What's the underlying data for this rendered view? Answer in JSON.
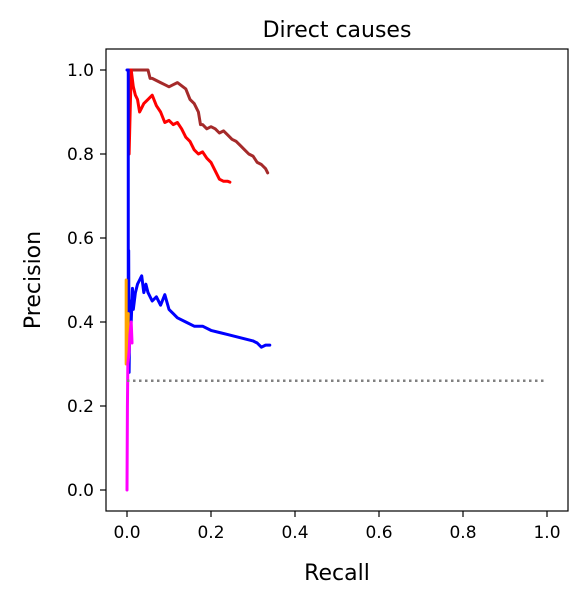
{
  "chart_data": {
    "type": "line",
    "title": "Direct causes",
    "xlabel": "Recall",
    "ylabel": "Precision",
    "xlim": [
      -0.05,
      1.05
    ],
    "ylim": [
      -0.05,
      1.05
    ],
    "xticks": [
      0.0,
      0.2,
      0.4,
      0.6,
      0.8,
      1.0
    ],
    "xtick_labels": [
      "0.0",
      "0.2",
      "0.4",
      "0.6",
      "0.8",
      "1.0"
    ],
    "yticks": [
      0.0,
      0.2,
      0.4,
      0.6,
      0.8,
      1.0
    ],
    "ytick_labels": [
      "0.0",
      "0.2",
      "0.4",
      "0.6",
      "0.8",
      "1.0"
    ],
    "grid": false,
    "legend": "none",
    "series": [
      {
        "color": "#a52a2a",
        "style": "solid",
        "x": [
          0.002,
          0.005,
          0.01,
          0.02,
          0.03,
          0.05,
          0.055,
          0.06,
          0.07,
          0.08,
          0.09,
          0.1,
          0.11,
          0.12,
          0.14,
          0.15,
          0.16,
          0.17,
          0.175,
          0.18,
          0.19,
          0.2,
          0.21,
          0.22,
          0.23,
          0.24,
          0.25,
          0.26,
          0.27,
          0.28,
          0.29,
          0.3,
          0.31,
          0.32,
          0.33,
          0.335
        ],
        "y": [
          1.0,
          1.0,
          1.0,
          1.0,
          1.0,
          1.0,
          0.98,
          0.98,
          0.975,
          0.97,
          0.965,
          0.96,
          0.965,
          0.97,
          0.955,
          0.93,
          0.92,
          0.9,
          0.87,
          0.87,
          0.86,
          0.865,
          0.86,
          0.85,
          0.855,
          0.845,
          0.835,
          0.83,
          0.82,
          0.81,
          0.8,
          0.795,
          0.78,
          0.775,
          0.765,
          0.755
        ]
      },
      {
        "color": "#ff0000",
        "style": "solid",
        "x": [
          0.005,
          0.01,
          0.015,
          0.02,
          0.025,
          0.03,
          0.035,
          0.04,
          0.05,
          0.06,
          0.07,
          0.08,
          0.09,
          0.1,
          0.11,
          0.12,
          0.13,
          0.14,
          0.15,
          0.16,
          0.17,
          0.18,
          0.19,
          0.2,
          0.21,
          0.22,
          0.23,
          0.24,
          0.245
        ],
        "y": [
          0.8,
          1.0,
          0.96,
          0.94,
          0.93,
          0.9,
          0.91,
          0.92,
          0.93,
          0.94,
          0.915,
          0.9,
          0.875,
          0.88,
          0.87,
          0.875,
          0.86,
          0.84,
          0.83,
          0.81,
          0.8,
          0.805,
          0.79,
          0.78,
          0.76,
          0.74,
          0.735,
          0.735,
          0.733
        ]
      },
      {
        "color": "#0000ff",
        "style": "solid",
        "x": [
          0.0,
          0.003,
          0.003,
          0.004,
          0.005,
          0.007,
          0.01,
          0.013,
          0.015,
          0.02,
          0.025,
          0.03,
          0.035,
          0.04,
          0.045,
          0.05,
          0.06,
          0.07,
          0.08,
          0.09,
          0.1,
          0.11,
          0.12,
          0.14,
          0.16,
          0.18,
          0.2,
          0.22,
          0.24,
          0.26,
          0.28,
          0.3,
          0.31,
          0.32,
          0.33,
          0.34
        ],
        "y": [
          1.0,
          1.0,
          0.3,
          0.57,
          0.28,
          0.45,
          0.4,
          0.48,
          0.43,
          0.47,
          0.49,
          0.5,
          0.51,
          0.47,
          0.49,
          0.47,
          0.45,
          0.46,
          0.44,
          0.465,
          0.43,
          0.42,
          0.41,
          0.4,
          0.39,
          0.39,
          0.38,
          0.375,
          0.37,
          0.365,
          0.36,
          0.355,
          0.35,
          0.34,
          0.345,
          0.345
        ]
      },
      {
        "color": "#ffa500",
        "style": "solid",
        "x": [
          -0.002,
          -0.002,
          0.002,
          0.003
        ],
        "y": [
          0.5,
          0.3,
          0.37,
          0.42
        ]
      },
      {
        "color": "#ff00ff",
        "style": "solid",
        "x": [
          0.0,
          0.001,
          0.002,
          0.003,
          0.005,
          0.007,
          0.01,
          0.012
        ],
        "y": [
          0.0,
          0.2,
          0.3,
          0.31,
          0.33,
          0.37,
          0.4,
          0.35
        ]
      },
      {
        "color": "#808080",
        "style": "dotted",
        "x": [
          0.0,
          1.0
        ],
        "y": [
          0.26,
          0.26
        ]
      }
    ]
  }
}
